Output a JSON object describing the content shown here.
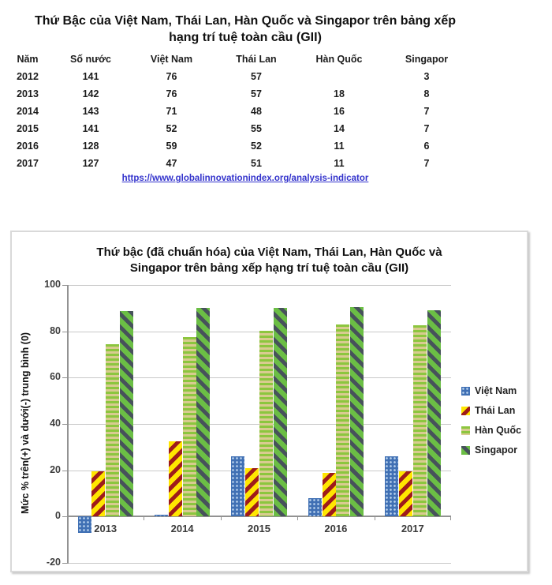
{
  "table": {
    "title_line1": "Thứ Bậc của Việt Nam, Thái Lan, Hàn Quốc và Singapor trên bảng xếp",
    "title_line2": "hạng trí tuệ toàn cầu (GII)",
    "headers": [
      "Năm",
      "Số nước",
      "Việt Nam",
      "Thái Lan",
      "Hàn Quốc",
      "Singapor"
    ],
    "rows": [
      [
        "2012",
        "141",
        "76",
        "57",
        "",
        "3"
      ],
      [
        "2013",
        "142",
        "76",
        "57",
        "18",
        "8"
      ],
      [
        "2014",
        "143",
        "71",
        "48",
        "16",
        "7"
      ],
      [
        "2015",
        "141",
        "52",
        "55",
        "14",
        "7"
      ],
      [
        "2016",
        "128",
        "59",
        "52",
        "11",
        "6"
      ],
      [
        "2017",
        "127",
        "47",
        "51",
        "11",
        "7"
      ]
    ],
    "source_link": "https://www.globalinnovationindex.org/analysis-indicator"
  },
  "chart_data": {
    "type": "bar",
    "title_line1": "Thứ bậc (đã chuẩn hóa) của Việt Nam, Thái Lan, Hàn Quốc và",
    "title_line2": "Singapor trên bảng xếp hạng trí tuệ toàn cầu (GII)",
    "ylabel": "Mức % trên(+) và dưới(-) trung bình (0)",
    "xlabel": "",
    "categories": [
      "2013",
      "2014",
      "2015",
      "2016",
      "2017"
    ],
    "y_ticks": [
      100,
      80,
      60,
      40,
      20,
      0,
      -20
    ],
    "ylim": [
      -20,
      100
    ],
    "grid": true,
    "legend_position": "right",
    "series": [
      {
        "name": "Việt Nam",
        "slug": "viet-nam",
        "pattern": "dots",
        "color": "#4070B4",
        "color2": "#BBD4EE",
        "values": [
          -7,
          0.7,
          26,
          8,
          26
        ]
      },
      {
        "name": "Thái Lan",
        "slug": "thai-lan",
        "pattern": "diag-up",
        "color": "#FFE600",
        "color2": "#9E1B1B",
        "values": [
          19.5,
          32.5,
          21,
          19,
          19.5
        ]
      },
      {
        "name": "Hàn Quốc",
        "slug": "han-quoc",
        "pattern": "hstripe",
        "color": "#8CC63E",
        "color2": "#D8CB90",
        "values": [
          74.6,
          77.6,
          80.1,
          82.8,
          82.7
        ]
      },
      {
        "name": "Singapor",
        "slug": "singapor",
        "pattern": "diag-down",
        "color": "#6BBE45",
        "color2": "#47525B",
        "values": [
          88.7,
          90.2,
          90.1,
          90.6,
          89
        ]
      }
    ],
    "grid_color": "#c9c9c9",
    "axis_color": "#929292"
  }
}
